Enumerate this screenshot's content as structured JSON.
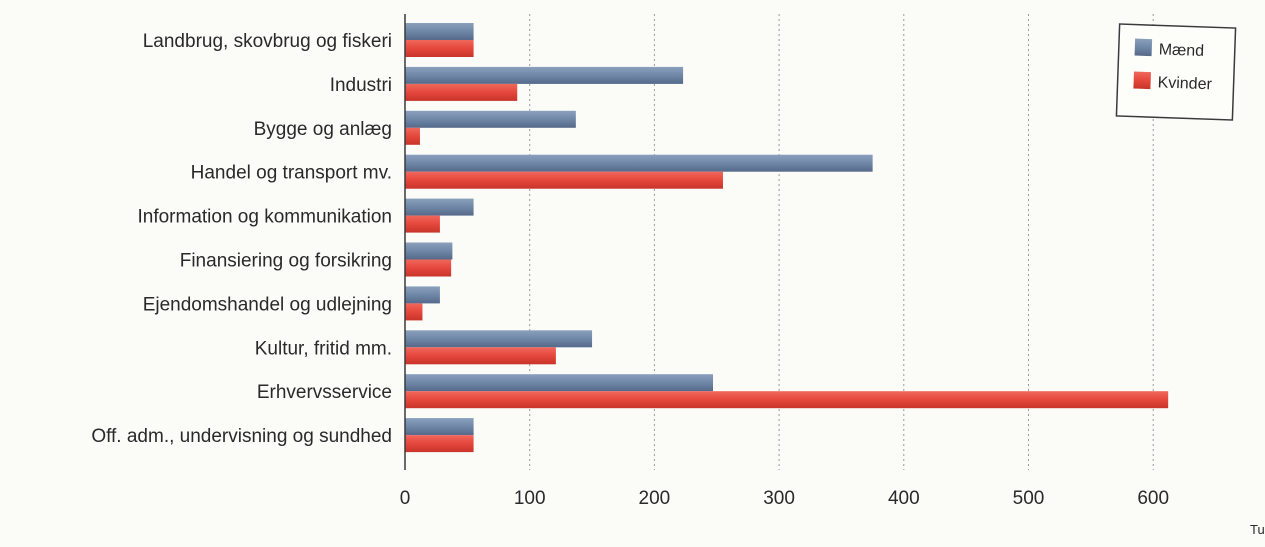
{
  "chart_data": {
    "type": "bar",
    "orientation": "horizontal",
    "categories": [
      "Landbrug, skovbrug og fiskeri",
      "Industri",
      "Bygge og anlæg",
      "Handel og transport mv.",
      "Information og kommunikation",
      "Finansiering og forsikring",
      "Ejendomshandel og udlejning",
      "Kultur, fritid mm.",
      "Erhvervsservice",
      "Off. adm., undervisning og sundhed"
    ],
    "series": [
      {
        "name": "Mænd",
        "color": "#6f87a6",
        "values": [
          55,
          223,
          137,
          375,
          55,
          38,
          28,
          150,
          247,
          55
        ]
      },
      {
        "name": "Kvinder",
        "color": "#e5473b",
        "values": [
          55,
          90,
          12,
          255,
          28,
          37,
          14,
          121,
          612,
          55
        ]
      }
    ],
    "xlim": [
      0,
      700
    ],
    "xticks": [
      0,
      100,
      200,
      300,
      400,
      500,
      600,
      700
    ],
    "x_unit": "Tusinde",
    "grid": true,
    "legend_position": "top-right"
  },
  "colors": {
    "men": "#6f87a6",
    "women": "#e5473b",
    "grid": "#9a9a9a"
  }
}
